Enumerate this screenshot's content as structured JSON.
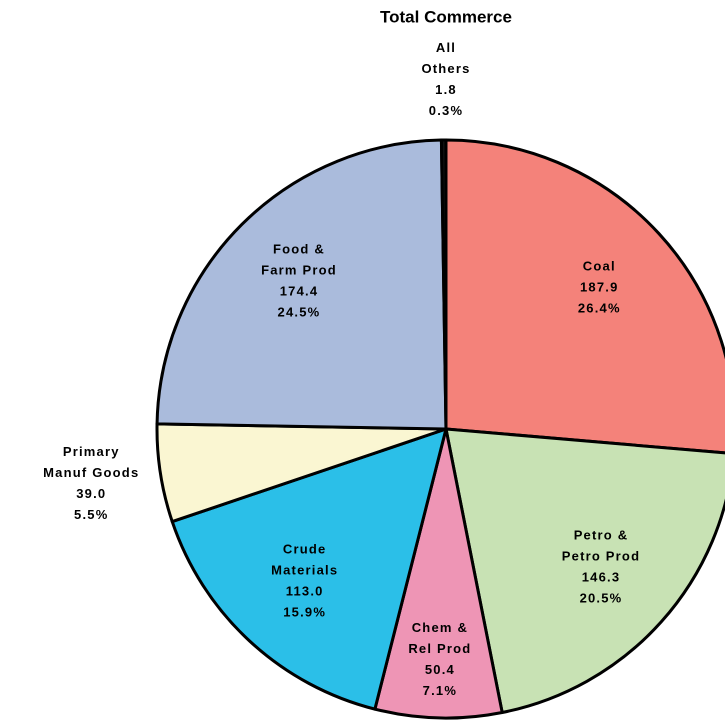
{
  "chart_data": {
    "type": "pie",
    "title": "Total Commerce",
    "categories": [
      [
        "Coal"
      ],
      [
        "Petro &",
        "Petro Prod"
      ],
      [
        "Chem &",
        "Rel Prod"
      ],
      [
        "Crude",
        "Materials"
      ],
      [
        "Primary",
        "Manuf Goods"
      ],
      [
        "Food &",
        "Farm Prod"
      ],
      [
        "All",
        "Others"
      ]
    ],
    "values": [
      187.9,
      146.3,
      50.4,
      113.0,
      39.0,
      174.4,
      1.8
    ],
    "value_labels": [
      "187.9",
      "146.3",
      "50.4",
      "113.0",
      "39.0",
      "174.4",
      "1.8"
    ],
    "percent_labels": [
      "26.4%",
      "20.5%",
      "7.1%",
      "15.9%",
      "5.5%",
      "24.5%",
      "0.3%"
    ],
    "colors": [
      "#f4827a",
      "#c8e2b4",
      "#ee95b5",
      "#2bbfe8",
      "#faf6d2",
      "#aabbdc",
      "#111111"
    ]
  }
}
